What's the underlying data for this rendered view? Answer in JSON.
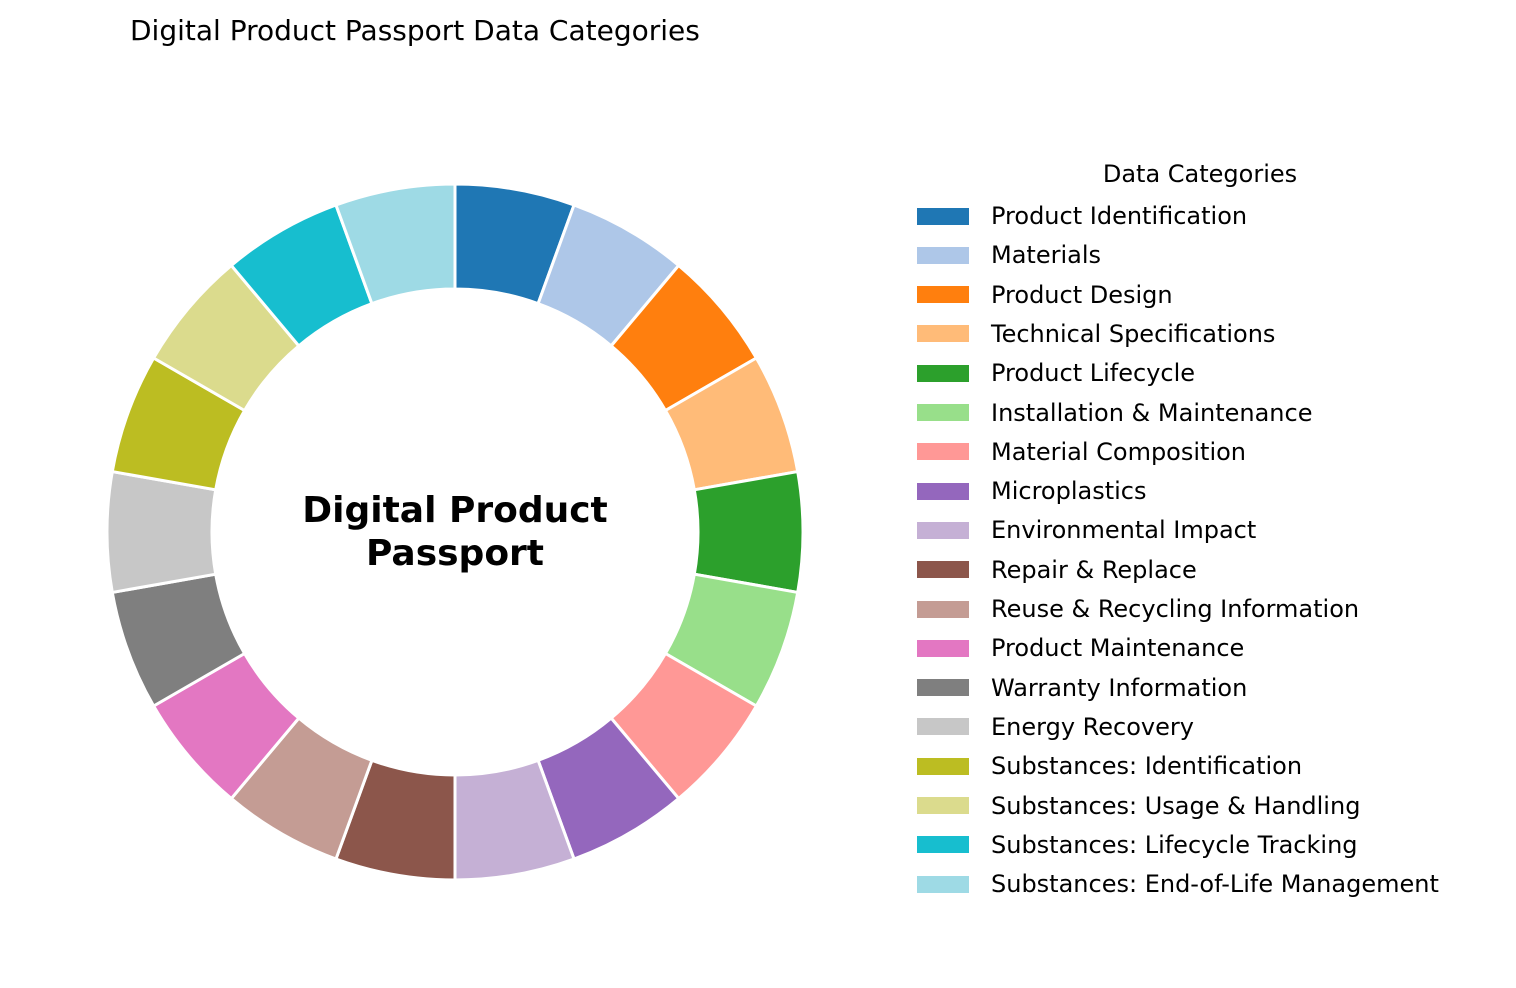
{
  "chart_data": {
    "type": "pie",
    "variant": "donut",
    "title": "Digital Product Passport Data Categories",
    "center_label": [
      "Digital Product",
      "Passport"
    ],
    "legend_title": "Data Categories",
    "legend_placement": "right",
    "start_angle_deg": 90,
    "direction": "clockwise",
    "slices": [
      {
        "label": "Product Identification",
        "value": 1,
        "color": "#1f77b4"
      },
      {
        "label": "Materials",
        "value": 1,
        "color": "#aec7e8"
      },
      {
        "label": "Product Design",
        "value": 1,
        "color": "#ff7f0e"
      },
      {
        "label": "Technical Specifications",
        "value": 1,
        "color": "#ffbb78"
      },
      {
        "label": "Product Lifecycle",
        "value": 1,
        "color": "#2ca02c"
      },
      {
        "label": "Installation & Maintenance",
        "value": 1,
        "color": "#98df8a"
      },
      {
        "label": "Material Composition",
        "value": 1,
        "color": "#ff9896"
      },
      {
        "label": "Microplastics",
        "value": 1,
        "color": "#9467bd"
      },
      {
        "label": "Environmental Impact",
        "value": 1,
        "color": "#c5b0d5"
      },
      {
        "label": "Repair & Replace",
        "value": 1,
        "color": "#8c564b"
      },
      {
        "label": "Reuse & Recycling Information",
        "value": 1,
        "color": "#c49c94"
      },
      {
        "label": "Product Maintenance",
        "value": 1,
        "color": "#e377c2"
      },
      {
        "label": "Warranty Information",
        "value": 1,
        "color": "#7f7f7f"
      },
      {
        "label": "Energy Recovery",
        "value": 1,
        "color": "#c7c7c7"
      },
      {
        "label": "Substances: Identification",
        "value": 1,
        "color": "#bcbd22"
      },
      {
        "label": "Substances: Usage & Handling",
        "value": 1,
        "color": "#dbdb8d"
      },
      {
        "label": "Substances: Lifecycle Tracking",
        "value": 1,
        "color": "#17becf"
      },
      {
        "label": "Substances: End-of-Life Management",
        "value": 1,
        "color": "#9edae5"
      }
    ]
  }
}
